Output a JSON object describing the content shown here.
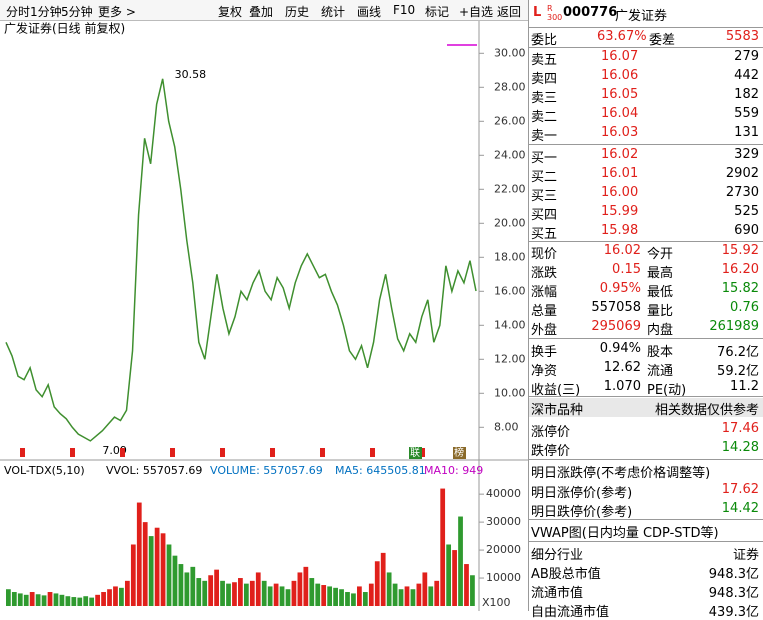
{
  "toolbar": [
    "分时",
    "1分钟",
    "5分钟",
    "更多 >",
    "复权",
    "叠加",
    "历史",
    "统计",
    "画线",
    "F10",
    "标记",
    "+自选",
    "返回"
  ],
  "price_chart": {
    "type": "line",
    "title": "广发证券(日线 前复权)",
    "color": "#3f8f2f",
    "values": [
      13.0,
      12.2,
      11.0,
      10.8,
      11.5,
      10.2,
      9.8,
      10.5,
      9.2,
      8.8,
      8.5,
      8.0,
      7.6,
      7.4,
      7.2,
      7.5,
      7.8,
      8.2,
      8.6,
      8.4,
      9.0,
      12.5,
      20.5,
      25.0,
      23.5,
      27.0,
      28.5,
      26.0,
      24.5,
      22.0,
      19.0,
      16.5,
      13.0,
      12.0,
      14.5,
      17.0,
      15.0,
      13.5,
      14.5,
      16.0,
      15.5,
      16.5,
      17.2,
      16.0,
      15.5,
      16.8,
      16.2,
      15.0,
      16.5,
      17.5,
      18.2,
      17.5,
      16.8,
      17.0,
      16.0,
      15.2,
      14.0,
      12.5,
      12.0,
      12.8,
      11.5,
      13.0,
      15.5,
      17.0,
      15.0,
      13.2,
      12.5,
      13.5,
      13.0,
      14.5,
      15.5,
      13.0,
      14.0,
      17.5,
      16.0,
      17.2,
      16.5,
      17.8,
      16.02
    ],
    "high_label": "30.58",
    "low_label": "7.09",
    "ylim": [
      6.9,
      31.9
    ],
    "yticks": [
      {
        "value": 8,
        "label": "8.00"
      },
      {
        "value": 10,
        "label": "10.00"
      },
      {
        "value": 12,
        "label": "12.00"
      },
      {
        "value": 14,
        "label": "14.00"
      },
      {
        "value": 16,
        "label": "16.00"
      },
      {
        "value": 18,
        "label": "18.00"
      },
      {
        "value": 20,
        "label": "20.00"
      },
      {
        "value": 22,
        "label": "22.00"
      },
      {
        "value": 24,
        "label": "24.00"
      },
      {
        "value": 26,
        "label": "26.00"
      },
      {
        "value": 28,
        "label": "28.00"
      },
      {
        "value": 30,
        "label": "30.00"
      }
    ],
    "markers": [
      "联",
      "榜"
    ]
  },
  "volume_chart": {
    "type": "bar",
    "header": [
      "VOL-TDX(5,10)",
      "VVOL: 557057.69",
      "VOLUME: 557057.69",
      "MA5: 645505.81",
      "MA10: 949"
    ],
    "values": [
      6000,
      5000,
      4500,
      4000,
      5000,
      4200,
      3800,
      5000,
      4500,
      4000,
      3500,
      3200,
      3000,
      3500,
      3000,
      4000,
      5000,
      6000,
      7000,
      6500,
      9000,
      22000,
      37000,
      30000,
      25000,
      28000,
      26000,
      22000,
      18000,
      15000,
      12000,
      14000,
      10000,
      9000,
      11000,
      13000,
      9000,
      8000,
      8500,
      10000,
      8000,
      9000,
      12000,
      9000,
      7000,
      8000,
      7000,
      6000,
      9000,
      12000,
      14000,
      10000,
      8000,
      7500,
      7000,
      6500,
      6000,
      5000,
      4500,
      7000,
      5000,
      8000,
      16000,
      19000,
      12000,
      8000,
      6000,
      7000,
      6000,
      8000,
      12000,
      7000,
      9000,
      42000,
      22000,
      20000,
      32000,
      15000,
      11000
    ],
    "ylim": [
      0,
      49000
    ],
    "yticks": [
      10000,
      20000,
      30000,
      40000
    ],
    "unit": "X100"
  },
  "quote": {
    "code": "000776",
    "name": "广发证券",
    "ratio": {
      "l1": "委比",
      "v1": "63.67%",
      "l2": "委差",
      "v2": "5583"
    },
    "book": [
      {
        "label": "卖五",
        "price": "16.07",
        "vol": "279"
      },
      {
        "label": "卖四",
        "price": "16.06",
        "vol": "442"
      },
      {
        "label": "卖三",
        "price": "16.05",
        "vol": "182"
      },
      {
        "label": "卖二",
        "price": "16.04",
        "vol": "559"
      },
      {
        "label": "卖一",
        "price": "16.03",
        "vol": "131"
      },
      {
        "label": "买一",
        "price": "16.02",
        "vol": "329"
      },
      {
        "label": "买二",
        "price": "16.01",
        "vol": "2902"
      },
      {
        "label": "买三",
        "price": "16.00",
        "vol": "2730"
      },
      {
        "label": "买四",
        "price": "15.99",
        "vol": "525"
      },
      {
        "label": "买五",
        "price": "15.98",
        "vol": "690"
      }
    ],
    "stats": [
      {
        "l1": "现价",
        "v1": "16.02",
        "c1": "#e0201b",
        "l2": "今开",
        "v2": "15.92",
        "c2": "#e0201b"
      },
      {
        "l1": "涨跌",
        "v1": "0.15",
        "c1": "#e0201b",
        "l2": "最高",
        "v2": "16.20",
        "c2": "#e0201b"
      },
      {
        "l1": "涨幅",
        "v1": "0.95%",
        "c1": "#e0201b",
        "l2": "最低",
        "v2": "15.82",
        "c2": "#0a8a0a"
      },
      {
        "l1": "总量",
        "v1": "557058",
        "c1": "#000000",
        "l2": "量比",
        "v2": "0.76",
        "c2": "#0a8a0a"
      },
      {
        "l1": "外盘",
        "v1": "295069",
        "c1": "#e0201b",
        "l2": "内盘",
        "v2": "261989",
        "c2": "#0a8a0a"
      },
      {
        "l1": "换手",
        "v1": "0.94%",
        "c1": "#000000",
        "l2": "股本",
        "v2": "76.2亿",
        "c2": "#000000"
      },
      {
        "l1": "净资",
        "v1": "12.62",
        "c1": "#000000",
        "l2": "流通",
        "v2": "59.2亿",
        "c2": "#000000"
      },
      {
        "l1": "收益(三)",
        "v1": "1.070",
        "c1": "#000000",
        "l2": "PE(动)",
        "v2": "11.2",
        "c2": "#000000"
      }
    ],
    "section": {
      "left": "深市品种",
      "right": "相关数据仅供参考"
    },
    "limits": [
      {
        "label": "涨停价",
        "value": "17.46",
        "color": "#e0201b"
      },
      {
        "label": "跌停价",
        "value": "14.28",
        "color": "#0a8a0a"
      }
    ],
    "tomorrow_title": "明日涨跌停(不考虑价格调整等)",
    "tomorrow": [
      {
        "label": "明日涨停价(参考)",
        "value": "17.62",
        "color": "#e0201b"
      },
      {
        "label": "明日跌停价(参考)",
        "value": "14.42",
        "color": "#0a8a0a"
      }
    ],
    "vwap": "VWAP图(日内均量 CDP-STD等)",
    "extra": [
      {
        "label": "细分行业",
        "value": "证券"
      },
      {
        "label": "AB股总市值",
        "value": "948.3亿"
      },
      {
        "label": "流通市值",
        "value": "948.3亿"
      },
      {
        "label": "自由流通市值",
        "value": "439.3亿"
      }
    ]
  }
}
